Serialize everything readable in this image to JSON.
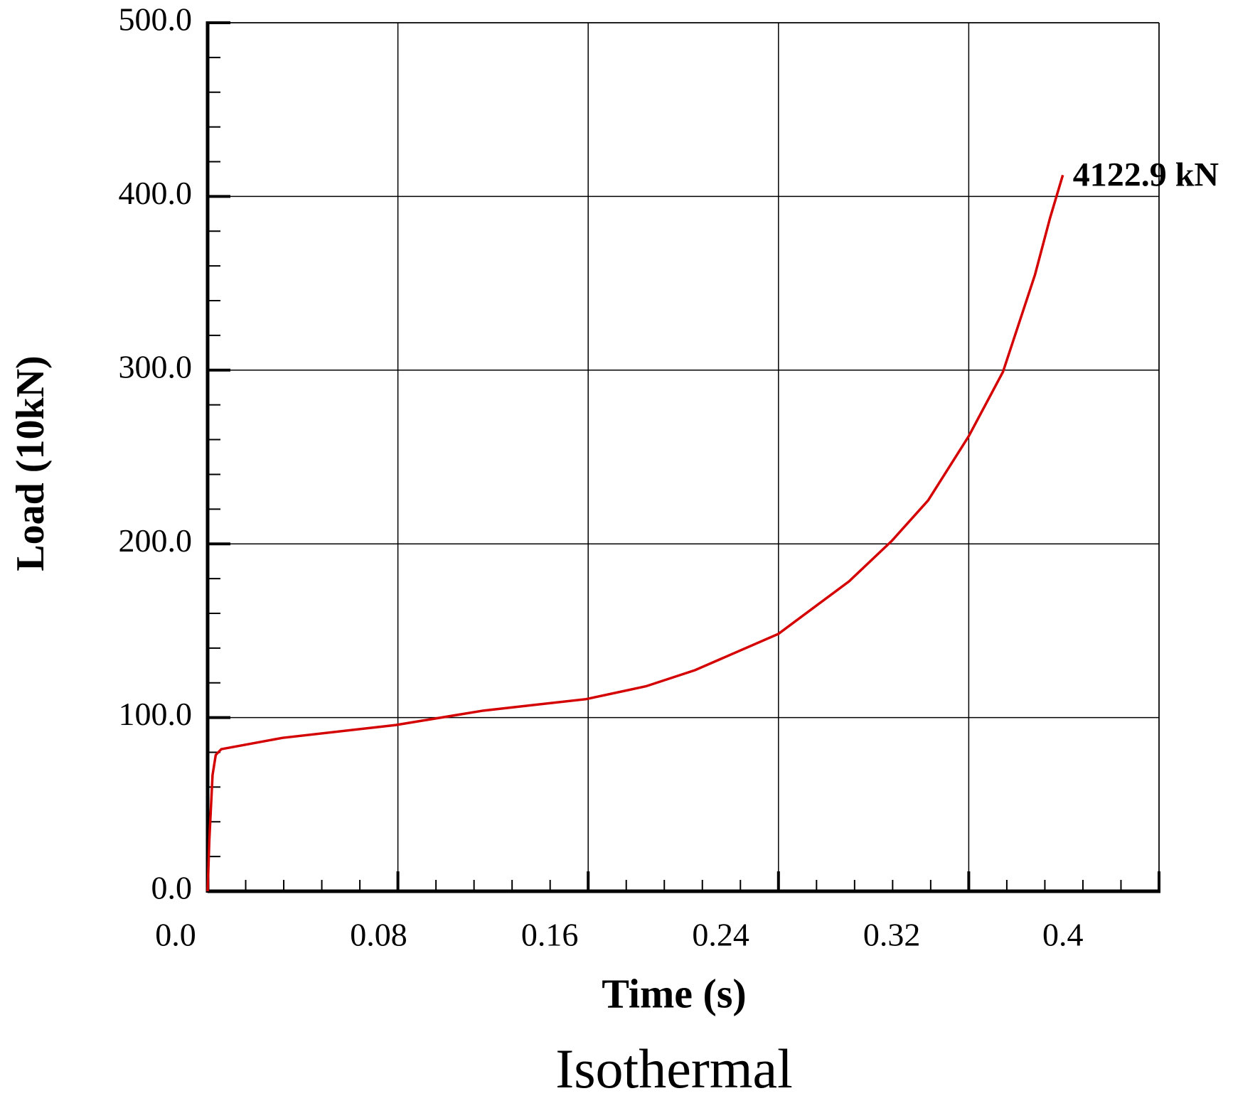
{
  "chart_data": {
    "type": "line",
    "title": "Isothermal",
    "x_label": "Time (s)",
    "y_label": "Load  (10kN)",
    "x": [
      0,
      0.0008,
      0.0023,
      0.0038,
      0.0064,
      0.035,
      0.088,
      0.129,
      0.177,
      0.205,
      0.228,
      0.267,
      0.3,
      0.32,
      0.337,
      0.356,
      0.372,
      0.387,
      0.394,
      0.4
    ],
    "series": [
      {
        "name": "Load",
        "color": "#d40000",
        "values": [
          0,
          29.7,
          66.9,
          78.5,
          81.8,
          88.3,
          95.7,
          104,
          110.6,
          118,
          127.3,
          148.2,
          178.4,
          201.7,
          225,
          262,
          299,
          355,
          387.5,
          412.3
        ]
      }
    ],
    "annotation": "4122.9 kN",
    "xlim": [
      0,
      0.445
    ],
    "xticks": [
      {
        "value": 0,
        "label": "0.0"
      },
      0.08,
      0.16,
      0.24,
      0.32,
      0.4
    ],
    "ylim": [
      0,
      500
    ],
    "yticks": [
      {
        "value": 0,
        "label": "0.0"
      },
      {
        "value": 100,
        "label": "100.0"
      },
      {
        "value": 200,
        "label": "200.0"
      },
      {
        "value": 300,
        "label": "300.0"
      },
      {
        "value": 400,
        "label": "400.0"
      },
      {
        "value": 500,
        "label": "500.0"
      }
    ],
    "grid": true
  }
}
